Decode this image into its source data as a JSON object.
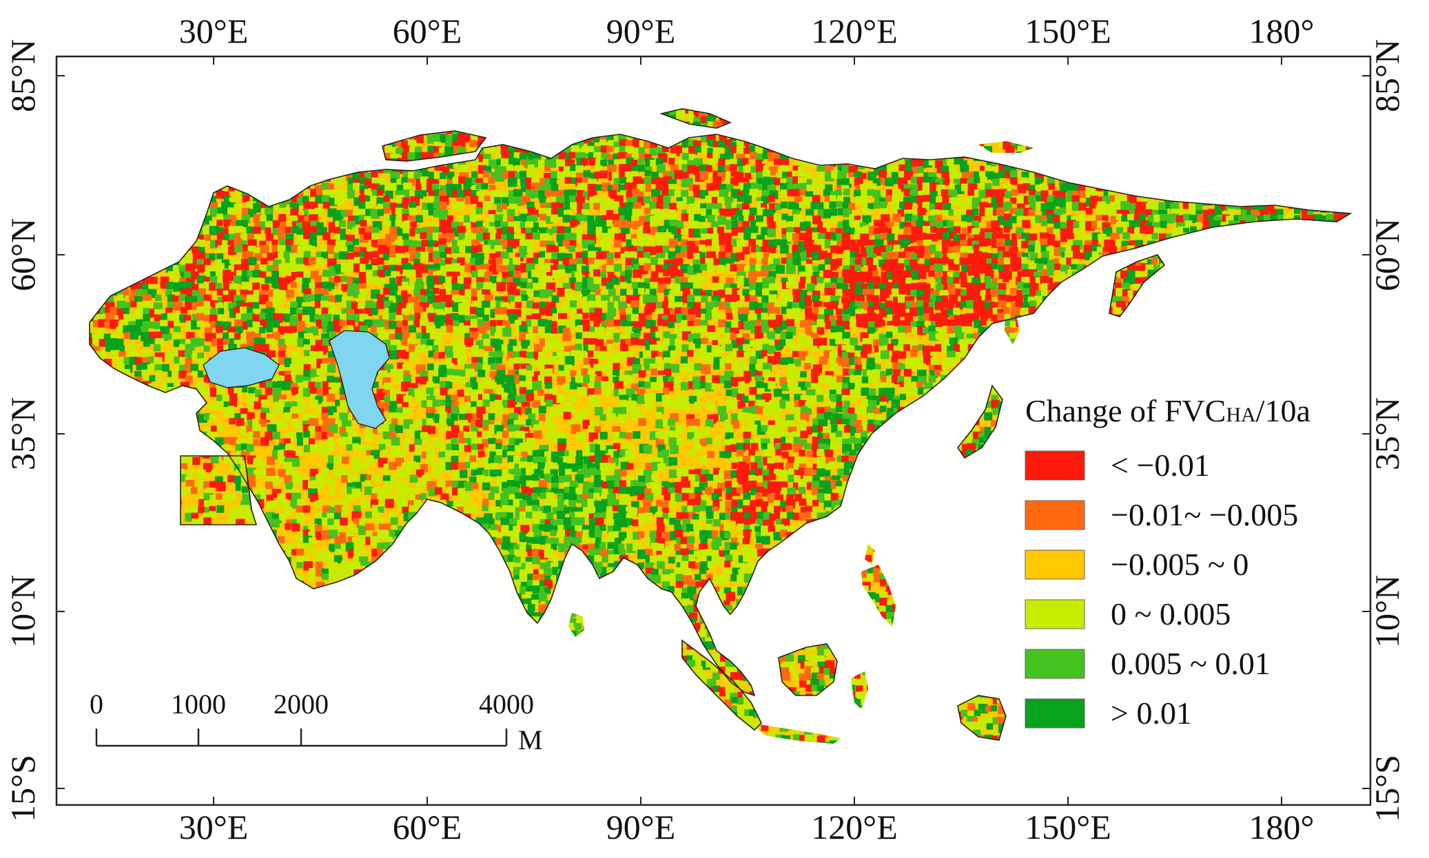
{
  "map": {
    "lon_ticks": [
      "30°E",
      "60°E",
      "90°E",
      "120°E",
      "150°E",
      "180°"
    ],
    "lat_ticks": [
      "85°N",
      "60°N",
      "35°N",
      "10°N",
      "15°S"
    ],
    "land_colors": [
      "#ff1a0d",
      "#ff6a10",
      "#ffc800",
      "#c8ec00",
      "#44c21e",
      "#07a31c"
    ],
    "water_color": "#7fd6ee",
    "outline_color": "#222222"
  },
  "legend": {
    "title_main": "Change of FVC",
    "title_sub": "HA",
    "title_tail": "/10a",
    "items": [
      {
        "label": "< −0.01",
        "color": "#ff1a0d"
      },
      {
        "label": "−0.01~ −0.005",
        "color": "#ff6a10"
      },
      {
        "label": "−0.005 ~ 0",
        "color": "#ffc800"
      },
      {
        "label": "0 ~ 0.005",
        "color": "#c8ec00"
      },
      {
        "label": "0.005 ~ 0.01",
        "color": "#44c21e"
      },
      {
        "label": "> 0.01",
        "color": "#07a31c"
      }
    ]
  },
  "scale_bar": {
    "labels": [
      "0",
      "1000",
      "2000",
      "4000"
    ],
    "unit": "M"
  }
}
